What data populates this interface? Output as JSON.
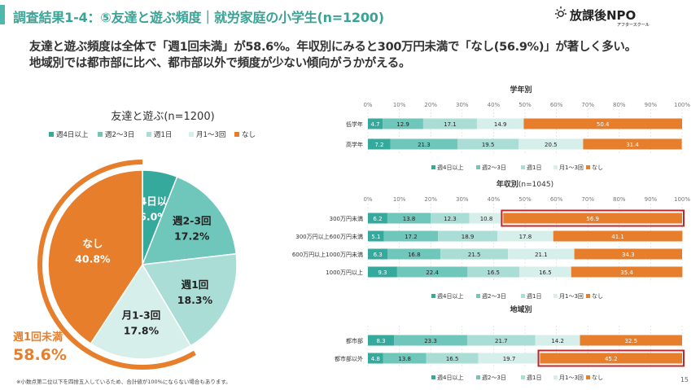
{
  "header": {
    "title": "調査結果1-4：⑤友達と遊ぶ頻度｜就労家庭の小学生(n=1200)",
    "logo_text": "放課後NPO",
    "logo_sub": "アフタースクール"
  },
  "lead": {
    "line1": "友達と遊ぶ頻度は全体で「週1回未満」が58.6%。年収別にみると300万円未満で「なし(56.9%)」が著しく多い。",
    "line2": "地域別では都市部に比べ、都市部以外で頻度が少ない傾向がうかがえる。"
  },
  "colors": {
    "accent": "#3aa395",
    "c1": "#35a99b",
    "c2": "#6fc6bb",
    "c3": "#a9ddd6",
    "c4": "#d7efeb",
    "none": "#e67e2b",
    "highlight_box": "#c0282c"
  },
  "pie": {
    "title": "友達と遊ぶ(n=1200)",
    "legend": [
      "週4日以上",
      "週2～3日",
      "週1日",
      "月1～3回",
      "なし"
    ],
    "callout_label": "週1回未満",
    "callout_value": "58.6%"
  },
  "section_titles": {
    "grade": "学年別",
    "income": "年収別",
    "income_n": "(n=1045)",
    "region": "地域別"
  },
  "axis_ticks": [
    "0%",
    "10%",
    "20%",
    "30%",
    "40%",
    "50%",
    "60%",
    "70%",
    "80%",
    "90%",
    "100%"
  ],
  "bar_legend": [
    "週4日以上",
    "週2～3日",
    "週1日",
    "月1～3回",
    "なし"
  ],
  "footnote": "※小数点第二位以下を四捨五入しているため、合計値が100%にならない場合もあります。",
  "page_number": "15",
  "chart_data": [
    {
      "type": "pie",
      "title": "友達と遊ぶ(n=1200)",
      "slices": [
        {
          "label": "週4日以上",
          "value": 6.0,
          "display": "6.0%"
        },
        {
          "label": "週2-3回",
          "value": 17.2,
          "display": "17.2%"
        },
        {
          "label": "週1回",
          "value": 18.3,
          "display": "18.3%"
        },
        {
          "label": "月1-3回",
          "value": 17.8,
          "display": "17.8%"
        },
        {
          "label": "なし",
          "value": 40.8,
          "display": "40.8%"
        }
      ]
    },
    {
      "type": "bar",
      "orientation": "horizontal",
      "stacked": true,
      "title": "学年別",
      "categories": [
        "低学年",
        "高学年"
      ],
      "series": [
        {
          "name": "週4日以上",
          "values": [
            4.7,
            7.2
          ]
        },
        {
          "name": "週2～3日",
          "values": [
            12.9,
            21.3
          ]
        },
        {
          "name": "週1日",
          "values": [
            17.1,
            19.5
          ]
        },
        {
          "name": "月1～3回",
          "values": [
            14.9,
            20.5
          ]
        },
        {
          "name": "なし",
          "values": [
            50.4,
            31.4
          ]
        }
      ],
      "xlim": [
        0,
        100
      ],
      "highlight": []
    },
    {
      "type": "bar",
      "orientation": "horizontal",
      "stacked": true,
      "title": "年収別(n=1045)",
      "categories": [
        "300万円未満",
        "300万円以上600万円未満",
        "600万円以上1000万円未満",
        "1000万円以上"
      ],
      "series": [
        {
          "name": "週4日以上",
          "values": [
            6.2,
            5.1,
            6.3,
            9.3
          ]
        },
        {
          "name": "週2～3日",
          "values": [
            13.8,
            17.2,
            16.8,
            22.4
          ]
        },
        {
          "name": "週1日",
          "values": [
            12.3,
            18.9,
            21.5,
            16.5
          ]
        },
        {
          "name": "月1～3回",
          "values": [
            10.8,
            17.8,
            21.1,
            16.5
          ]
        },
        {
          "name": "なし",
          "values": [
            56.9,
            41.1,
            34.3,
            35.4
          ]
        }
      ],
      "xlim": [
        0,
        100
      ],
      "highlight": [
        0
      ]
    },
    {
      "type": "bar",
      "orientation": "horizontal",
      "stacked": true,
      "title": "地域別",
      "categories": [
        "都市部",
        "都市部以外"
      ],
      "series": [
        {
          "name": "週4日以上",
          "values": [
            8.3,
            4.8
          ]
        },
        {
          "name": "週2～3日",
          "values": [
            23.3,
            13.8
          ]
        },
        {
          "name": "週1日",
          "values": [
            21.7,
            16.5
          ]
        },
        {
          "name": "月1～3回",
          "values": [
            14.2,
            19.7
          ]
        },
        {
          "name": "なし",
          "values": [
            32.5,
            45.2
          ]
        }
      ],
      "xlim": [
        0,
        100
      ],
      "highlight": [
        1
      ]
    }
  ]
}
